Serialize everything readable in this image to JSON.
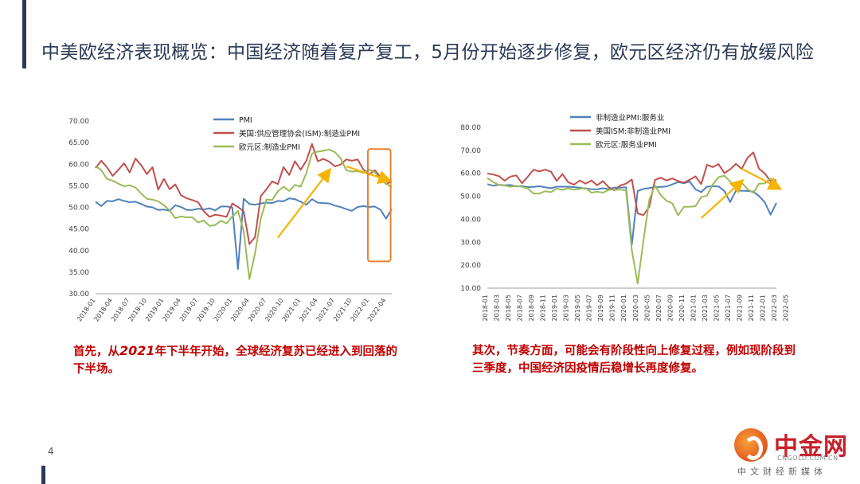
{
  "title": "中美欧经济表现概览：中国经济随着复产复工，5月份开始逐步修复，欧元区经济仍有放缓风险",
  "page_number": "4",
  "captions": {
    "left_a": "首先，从",
    "left_year": "2021",
    "left_b": "年下半年开始，全球经济复苏已经进入到回落的下半场。",
    "right": "其次，节奏方面，可能会有阶段性向上修复过程，例如现阶段到三季度，中国经济因疫情后稳增长再度修复。"
  },
  "logo": {
    "name": "中金网",
    "url": "CNGOLD.COM.CN",
    "subtitle": "中文财经新媒体"
  },
  "colors": {
    "blue": "#4f81bd",
    "red": "#c0504d",
    "green": "#9bbb59",
    "arrow": "#f5b400",
    "box": "#e8812b"
  },
  "chart_data": [
    {
      "type": "line",
      "ylim": [
        30,
        70
      ],
      "yticks": [
        "30.00",
        "35.00",
        "40.00",
        "45.00",
        "50.00",
        "55.00",
        "60.00",
        "65.00",
        "70.00"
      ],
      "xticks": [
        "2018-01",
        "2018-04",
        "2018-07",
        "2018-10",
        "2019-01",
        "2019-04",
        "2019-07",
        "2019-10",
        "2020-01",
        "2020-04",
        "2020-07",
        "2020-10",
        "2021-01",
        "2021-04",
        "2021-07",
        "2021-10",
        "2022-01",
        "2022-04"
      ],
      "legend": [
        "PMI",
        "美国:供应管理协会(ISM):制造业PMI",
        "欧元区:制造业PMI"
      ],
      "series": [
        {
          "name": "PMI",
          "values": [
            51.3,
            50.3,
            51.5,
            51.4,
            51.9,
            51.5,
            51.2,
            51.3,
            50.8,
            50.2,
            50.0,
            49.4,
            49.5,
            49.2,
            50.5,
            50.1,
            49.4,
            49.4,
            49.7,
            49.5,
            49.8,
            49.3,
            50.2,
            50.2,
            50.0,
            35.7,
            52.0,
            50.8,
            50.6,
            50.9,
            51.1,
            51.0,
            51.5,
            51.4,
            52.1,
            51.9,
            51.3,
            50.6,
            51.9,
            51.1,
            51.0,
            50.9,
            50.4,
            50.1,
            49.6,
            49.2,
            50.1,
            50.3,
            50.1,
            50.2,
            49.5,
            47.4,
            49.6
          ]
        },
        {
          "name": "美国:供应管理协会(ISM):制造业PMI",
          "values": [
            59.1,
            60.8,
            59.3,
            57.3,
            58.7,
            60.2,
            58.1,
            61.3,
            59.8,
            57.7,
            59.3,
            54.1,
            56.6,
            54.2,
            55.3,
            52.8,
            52.1,
            51.7,
            51.2,
            49.1,
            47.8,
            48.3,
            48.1,
            47.8,
            50.9,
            50.1,
            49.1,
            41.5,
            43.1,
            52.6,
            54.2,
            56.0,
            55.4,
            59.3,
            57.5,
            60.7,
            58.7,
            60.8,
            64.7,
            60.7,
            61.2,
            60.6,
            59.5,
            59.9,
            61.1,
            60.8,
            61.1,
            58.8,
            57.6,
            58.6,
            57.1,
            55.4,
            56.1
          ]
        },
        {
          "name": "欧元区:制造业PMI",
          "values": [
            59.6,
            58.6,
            56.6,
            56.2,
            55.5,
            54.9,
            55.1,
            54.6,
            53.2,
            52.0,
            51.8,
            51.4,
            50.5,
            49.3,
            47.5,
            47.9,
            47.7,
            47.7,
            46.5,
            47.0,
            45.7,
            45.9,
            46.9,
            46.3,
            47.9,
            49.2,
            44.5,
            33.4,
            39.4,
            47.4,
            51.8,
            51.7,
            53.7,
            54.8,
            53.8,
            55.2,
            54.8,
            57.9,
            62.5,
            62.9,
            63.1,
            63.4,
            62.8,
            61.4,
            58.6,
            58.3,
            58.4,
            58.0,
            58.7,
            58.2,
            56.5,
            55.5,
            54.6
          ]
        }
      ]
    },
    {
      "type": "line",
      "ylim": [
        10,
        80
      ],
      "yticks": [
        "10.00",
        "20.00",
        "30.00",
        "40.00",
        "50.00",
        "60.00",
        "70.00",
        "80.00"
      ],
      "xticks": [
        "2018-01",
        "2018-03",
        "2018-05",
        "2018-07",
        "2018-09",
        "2018-11",
        "2019-01",
        "2019-03",
        "2019-05",
        "2019-07",
        "2019-09",
        "2019-11",
        "2020-01",
        "2020-03",
        "2020-05",
        "2020-07",
        "2020-09",
        "2020-11",
        "2021-01",
        "2021-03",
        "2021-05",
        "2021-07",
        "2021-09",
        "2021-11",
        "2022-01",
        "2022-03",
        "2022-05"
      ],
      "legend": [
        "非制造业PMI:服务业",
        "美国ISM:非制造业PMI",
        "欧元区:服务业PMI"
      ],
      "series": [
        {
          "name": "非制造业PMI:服务业",
          "values": [
            55.3,
            54.6,
            55.0,
            54.8,
            54.9,
            54.3,
            54.5,
            54.0,
            54.1,
            54.4,
            53.9,
            53.5,
            54.2,
            54.2,
            54.2,
            54.0,
            53.7,
            53.3,
            53.1,
            53.0,
            53.5,
            53.1,
            53.8,
            53.8,
            53.9,
            29.0,
            52.3,
            53.2,
            53.6,
            54.0,
            54.1,
            54.3,
            55.2,
            56.2,
            55.7,
            56.4,
            53.0,
            51.8,
            54.2,
            54.4,
            54.3,
            52.3,
            47.5,
            52.4,
            52.4,
            52.3,
            52.0,
            50.1,
            47.4,
            42.0,
            47.1
          ]
        },
        {
          "name": "美国ISM:非制造业PMI",
          "values": [
            59.9,
            59.5,
            58.8,
            56.8,
            58.6,
            59.1,
            55.7,
            58.5,
            61.6,
            60.8,
            61.6,
            60.7,
            56.7,
            59.7,
            56.1,
            55.1,
            56.9,
            55.5,
            56.9,
            54.8,
            56.6,
            53.9,
            52.6,
            54.7,
            55.5,
            57.3,
            42.5,
            41.8,
            45.4,
            57.1,
            58.1,
            56.9,
            57.8,
            56.6,
            55.9,
            57.2,
            58.7,
            55.3,
            63.7,
            62.7,
            64.0,
            60.1,
            61.7,
            64.1,
            61.9,
            66.7,
            69.1,
            62.0,
            59.9,
            56.5,
            57.1
          ]
        },
        {
          "name": "欧元区:服务业PMI",
          "values": [
            58.0,
            56.2,
            54.9,
            54.7,
            54.2,
            54.5,
            54.2,
            53.4,
            51.2,
            51.2,
            52.2,
            51.8,
            53.3,
            52.8,
            53.5,
            52.9,
            53.2,
            53.6,
            51.6,
            52.0,
            51.6,
            52.8,
            52.9,
            52.9,
            52.6,
            26.4,
            12.0,
            30.5,
            48.3,
            54.7,
            50.5,
            48.0,
            46.9,
            41.7,
            45.4,
            45.4,
            45.7,
            49.6,
            50.3,
            55.2,
            58.3,
            59.0,
            56.4,
            54.6,
            55.9,
            53.1,
            51.5,
            55.5,
            55.6,
            57.7,
            56.1
          ]
        }
      ]
    }
  ]
}
